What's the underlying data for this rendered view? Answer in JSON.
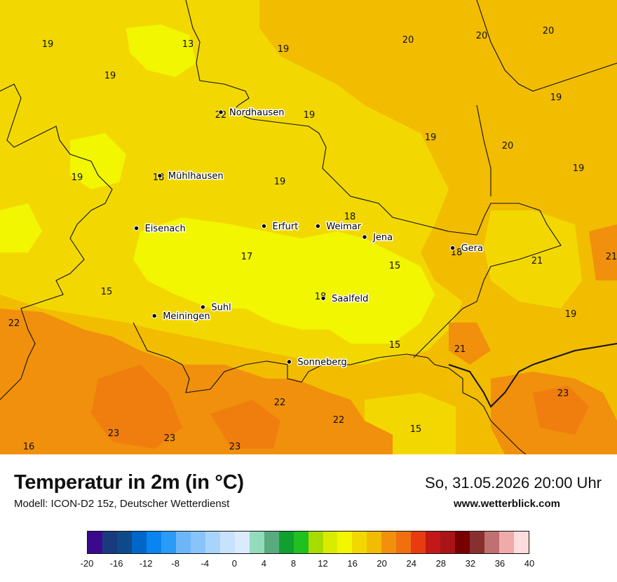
{
  "title": "Temperatur in 2m (in °C)",
  "model": "Modell: ICON-D2 15z, Deutscher Wetterdienst",
  "valid_time": "So, 31.05.2026 20:00 Uhr",
  "website": "www.wetterblick.com",
  "cities": [
    {
      "name": "Nordhausen",
      "lon": 10.79,
      "lat": 51.5
    },
    {
      "name": "Mühlhausen",
      "lon": 10.45,
      "lat": 51.21
    },
    {
      "name": "Eisenach",
      "lon": 10.32,
      "lat": 50.97
    },
    {
      "name": "Erfurt",
      "lon": 11.03,
      "lat": 50.98
    },
    {
      "name": "Weimar",
      "lon": 11.33,
      "lat": 50.98
    },
    {
      "name": "Jena",
      "lon": 11.59,
      "lat": 50.93
    },
    {
      "name": "Gera",
      "lon": 12.08,
      "lat": 50.88
    },
    {
      "name": "Suhl",
      "lon": 10.69,
      "lat": 50.61
    },
    {
      "name": "Meiningen",
      "lon": 10.42,
      "lat": 50.57
    },
    {
      "name": "Saalfeld",
      "lon": 11.36,
      "lat": 50.65
    },
    {
      "name": "Sonneberg",
      "lon": 11.17,
      "lat": 50.36
    }
  ],
  "values": [
    "19",
    "13",
    "19",
    "20",
    "20",
    "20",
    "19",
    "19",
    "19",
    "19",
    "19",
    "20",
    "19",
    "18",
    "19",
    "18",
    "18",
    "17",
    "15",
    "15",
    "21",
    "21",
    "15",
    "18",
    "19",
    "22",
    "21",
    "15",
    "23",
    "22",
    "22",
    "16",
    "23",
    "23",
    "23",
    "22"
  ],
  "legend": {
    "colors": [
      "#3b0a8c",
      "#1a3a80",
      "#0e4a8a",
      "#0067c8",
      "#0a84ee",
      "#2a9bf6",
      "#6cb6f8",
      "#88c4fa",
      "#a8d4fb",
      "#c8e2fc",
      "#dbebfd",
      "#92dcbc",
      "#5aaa80",
      "#10a030",
      "#20c020",
      "#a8dc00",
      "#d8ec00",
      "#f2f600",
      "#f2d800",
      "#f2bc00",
      "#f0900c",
      "#f07010",
      "#e63c10",
      "#c21818",
      "#a81418",
      "#780000",
      "#883030",
      "#c07070",
      "#f0aaaa",
      "#fcdcdc"
    ],
    "ticks": [
      "-20",
      "-16",
      "-12",
      "-8",
      "-4",
      "0",
      "4",
      "8",
      "12",
      "16",
      "20",
      "24",
      "28",
      "32",
      "36",
      "40"
    ]
  },
  "field_colors": {
    "t15": "#f2f600",
    "t16": "#f2d800",
    "t17": "#f2bc00",
    "t18": "#f0900c"
  }
}
